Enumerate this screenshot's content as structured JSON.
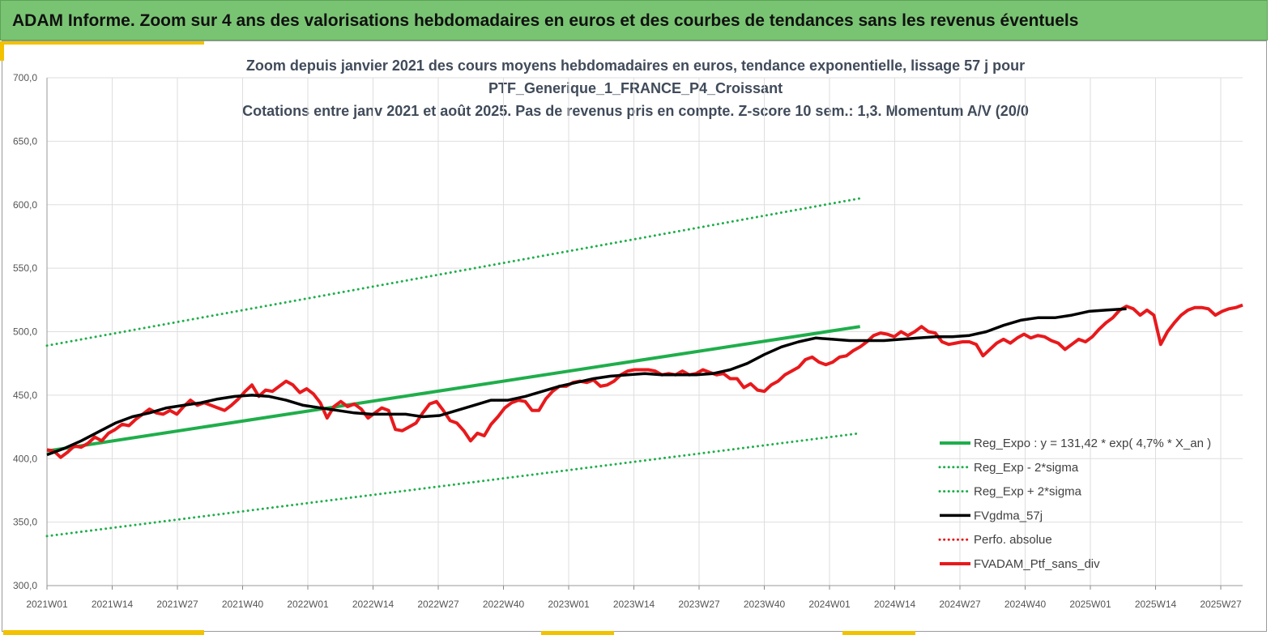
{
  "header": {
    "title": "ADAM Informe. Zoom sur 4 ans des valorisations hebdomadaires en euros et des courbes de tendances sans les revenus éventuels"
  },
  "chart_data": {
    "type": "line",
    "title_lines": [
      "Zoom depuis janvier 2021 des cours moyens hebdomadaires  en euros, tendance exponentielle, lissage 57 j pour",
      "PTF_Generique_1_FRANCE_P4_Croissant",
      "Cotations entre janv 2021 et août 2025. Pas de revenus pris en compte. Z-score 10 sem.: 1,3. Momentum A/V (20/0"
    ],
    "ylim": [
      300,
      700
    ],
    "yticks": [
      "300,0",
      "350,0",
      "400,0",
      "450,0",
      "500,0",
      "550,0",
      "600,0",
      "650,0",
      "700,0"
    ],
    "x_labels": [
      "2021W01",
      "2021W14",
      "2021W27",
      "2021W40",
      "2022W01",
      "2022W14",
      "2022W27",
      "2022W40",
      "2023W01",
      "2023W14",
      "2023W27",
      "2023W40",
      "2024W01",
      "2024W14",
      "2024W27",
      "2024W40",
      "2025W01",
      "2025W14",
      "2025W27"
    ],
    "grid": true,
    "legend_position": "bottom-right",
    "series": [
      {
        "name": "Reg_Expo : y = 131,42 * exp( 4,7% * X_an )",
        "style": "solid",
        "color": "#1fae4b",
        "width": 4,
        "points": [
          [
            0,
            406
          ],
          [
            238,
            504
          ]
        ]
      },
      {
        "name": "Reg_Exp - 2*sigma",
        "style": "dotted",
        "color": "#1fae4b",
        "width": 3,
        "points": [
          [
            0,
            339
          ],
          [
            238,
            420
          ]
        ]
      },
      {
        "name": "Reg_Exp + 2*sigma",
        "style": "dotted",
        "color": "#1fae4b",
        "width": 3,
        "points": [
          [
            0,
            489
          ],
          [
            238,
            605
          ]
        ]
      },
      {
        "name": "FVgdma_57j",
        "style": "solid",
        "color": "#000000",
        "width": 3.5,
        "points": [
          [
            0,
            403
          ],
          [
            5,
            408
          ],
          [
            10,
            414
          ],
          [
            15,
            421
          ],
          [
            20,
            428
          ],
          [
            25,
            433
          ],
          [
            30,
            436
          ],
          [
            35,
            440
          ],
          [
            40,
            442
          ],
          [
            45,
            444
          ],
          [
            50,
            447
          ],
          [
            55,
            449
          ],
          [
            60,
            450
          ],
          [
            65,
            449
          ],
          [
            70,
            446
          ],
          [
            75,
            442
          ],
          [
            80,
            440
          ],
          [
            85,
            438
          ],
          [
            90,
            436
          ],
          [
            95,
            435
          ],
          [
            100,
            435
          ],
          [
            105,
            435
          ],
          [
            110,
            433
          ],
          [
            115,
            434
          ],
          [
            120,
            438
          ],
          [
            125,
            442
          ],
          [
            130,
            446
          ],
          [
            135,
            446
          ],
          [
            140,
            449
          ],
          [
            145,
            453
          ],
          [
            150,
            457
          ],
          [
            155,
            460
          ],
          [
            160,
            463
          ],
          [
            165,
            465
          ],
          [
            170,
            466
          ],
          [
            175,
            467
          ],
          [
            180,
            466
          ],
          [
            185,
            466
          ],
          [
            190,
            466
          ],
          [
            195,
            467
          ],
          [
            200,
            470
          ],
          [
            205,
            475
          ],
          [
            210,
            482
          ],
          [
            215,
            488
          ],
          [
            220,
            492
          ],
          [
            225,
            495
          ],
          [
            230,
            494
          ],
          [
            235,
            493
          ],
          [
            240,
            493
          ],
          [
            245,
            493
          ],
          [
            250,
            494
          ],
          [
            255,
            495
          ],
          [
            260,
            496
          ],
          [
            265,
            496
          ],
          [
            270,
            497
          ],
          [
            275,
            500
          ],
          [
            280,
            505
          ],
          [
            285,
            509
          ],
          [
            290,
            511
          ],
          [
            295,
            511
          ],
          [
            300,
            513
          ],
          [
            305,
            516
          ],
          [
            310,
            517
          ],
          [
            316,
            518
          ]
        ]
      },
      {
        "name": "Perfo. absolue",
        "style": "dotted",
        "color": "#e8191c",
        "width": 3,
        "points": []
      },
      {
        "name": "FVADAM_Ptf_sans_div",
        "style": "solid",
        "color": "#e8191c",
        "width": 4,
        "points": [
          [
            0,
            407
          ],
          [
            2,
            406
          ],
          [
            4,
            401
          ],
          [
            6,
            405
          ],
          [
            8,
            410
          ],
          [
            10,
            409
          ],
          [
            12,
            412
          ],
          [
            14,
            417
          ],
          [
            16,
            414
          ],
          [
            18,
            420
          ],
          [
            20,
            423
          ],
          [
            22,
            427
          ],
          [
            24,
            426
          ],
          [
            26,
            431
          ],
          [
            28,
            435
          ],
          [
            30,
            439
          ],
          [
            32,
            436
          ],
          [
            34,
            435
          ],
          [
            36,
            438
          ],
          [
            38,
            435
          ],
          [
            40,
            441
          ],
          [
            42,
            446
          ],
          [
            44,
            442
          ],
          [
            46,
            444
          ],
          [
            48,
            442
          ],
          [
            50,
            440
          ],
          [
            52,
            438
          ],
          [
            54,
            442
          ],
          [
            56,
            447
          ],
          [
            58,
            453
          ],
          [
            60,
            458
          ],
          [
            62,
            449
          ],
          [
            64,
            454
          ],
          [
            66,
            453
          ],
          [
            68,
            457
          ],
          [
            70,
            461
          ],
          [
            72,
            458
          ],
          [
            74,
            452
          ],
          [
            76,
            455
          ],
          [
            78,
            451
          ],
          [
            80,
            444
          ],
          [
            82,
            432
          ],
          [
            84,
            441
          ],
          [
            86,
            445
          ],
          [
            88,
            441
          ],
          [
            90,
            443
          ],
          [
            92,
            439
          ],
          [
            94,
            432
          ],
          [
            96,
            436
          ],
          [
            98,
            440
          ],
          [
            100,
            438
          ],
          [
            102,
            423
          ],
          [
            104,
            422
          ],
          [
            106,
            425
          ],
          [
            108,
            428
          ],
          [
            110,
            436
          ],
          [
            112,
            443
          ],
          [
            114,
            445
          ],
          [
            116,
            438
          ],
          [
            118,
            430
          ],
          [
            120,
            428
          ],
          [
            122,
            422
          ],
          [
            124,
            414
          ],
          [
            126,
            420
          ],
          [
            128,
            418
          ],
          [
            130,
            427
          ],
          [
            132,
            433
          ],
          [
            134,
            440
          ],
          [
            136,
            444
          ],
          [
            138,
            446
          ],
          [
            140,
            445
          ],
          [
            142,
            438
          ],
          [
            144,
            438
          ],
          [
            146,
            447
          ],
          [
            148,
            453
          ],
          [
            150,
            457
          ],
          [
            152,
            457
          ],
          [
            154,
            460
          ],
          [
            156,
            461
          ],
          [
            158,
            460
          ],
          [
            160,
            462
          ],
          [
            162,
            457
          ],
          [
            164,
            458
          ],
          [
            166,
            461
          ],
          [
            168,
            466
          ],
          [
            170,
            469
          ],
          [
            172,
            470
          ],
          [
            174,
            470
          ],
          [
            176,
            470
          ],
          [
            178,
            469
          ],
          [
            180,
            466
          ],
          [
            182,
            467
          ],
          [
            184,
            466
          ],
          [
            186,
            469
          ],
          [
            188,
            466
          ],
          [
            190,
            467
          ],
          [
            192,
            470
          ],
          [
            194,
            468
          ],
          [
            196,
            466
          ],
          [
            198,
            467
          ],
          [
            200,
            463
          ],
          [
            202,
            463
          ],
          [
            204,
            456
          ],
          [
            206,
            459
          ],
          [
            208,
            454
          ],
          [
            210,
            453
          ],
          [
            212,
            458
          ],
          [
            214,
            461
          ],
          [
            216,
            466
          ],
          [
            218,
            469
          ],
          [
            220,
            472
          ],
          [
            222,
            478
          ],
          [
            224,
            480
          ],
          [
            226,
            476
          ],
          [
            228,
            474
          ],
          [
            230,
            476
          ],
          [
            232,
            480
          ],
          [
            234,
            481
          ],
          [
            236,
            485
          ],
          [
            238,
            488
          ],
          [
            240,
            492
          ],
          [
            242,
            497
          ],
          [
            244,
            499
          ],
          [
            246,
            498
          ],
          [
            248,
            496
          ],
          [
            250,
            500
          ],
          [
            252,
            497
          ],
          [
            254,
            500
          ],
          [
            256,
            504
          ],
          [
            258,
            500
          ],
          [
            260,
            499
          ],
          [
            262,
            492
          ],
          [
            264,
            490
          ],
          [
            266,
            491
          ],
          [
            268,
            492
          ],
          [
            270,
            492
          ],
          [
            272,
            490
          ],
          [
            274,
            481
          ],
          [
            276,
            486
          ],
          [
            278,
            491
          ],
          [
            280,
            494
          ],
          [
            282,
            491
          ],
          [
            284,
            495
          ],
          [
            286,
            498
          ],
          [
            288,
            495
          ],
          [
            290,
            497
          ],
          [
            292,
            496
          ],
          [
            294,
            493
          ],
          [
            296,
            491
          ],
          [
            298,
            486
          ],
          [
            300,
            490
          ],
          [
            302,
            494
          ],
          [
            304,
            492
          ],
          [
            306,
            496
          ],
          [
            308,
            502
          ],
          [
            310,
            507
          ],
          [
            312,
            511
          ],
          [
            314,
            517
          ],
          [
            316,
            520
          ],
          [
            318,
            518
          ],
          [
            320,
            513
          ],
          [
            322,
            517
          ],
          [
            324,
            513
          ],
          [
            326,
            490
          ],
          [
            328,
            500
          ],
          [
            330,
            507
          ],
          [
            332,
            513
          ],
          [
            334,
            517
          ],
          [
            336,
            519
          ],
          [
            338,
            519
          ],
          [
            340,
            518
          ],
          [
            342,
            513
          ],
          [
            344,
            516
          ],
          [
            346,
            518
          ],
          [
            348,
            519
          ],
          [
            350,
            521
          ]
        ]
      }
    ]
  }
}
